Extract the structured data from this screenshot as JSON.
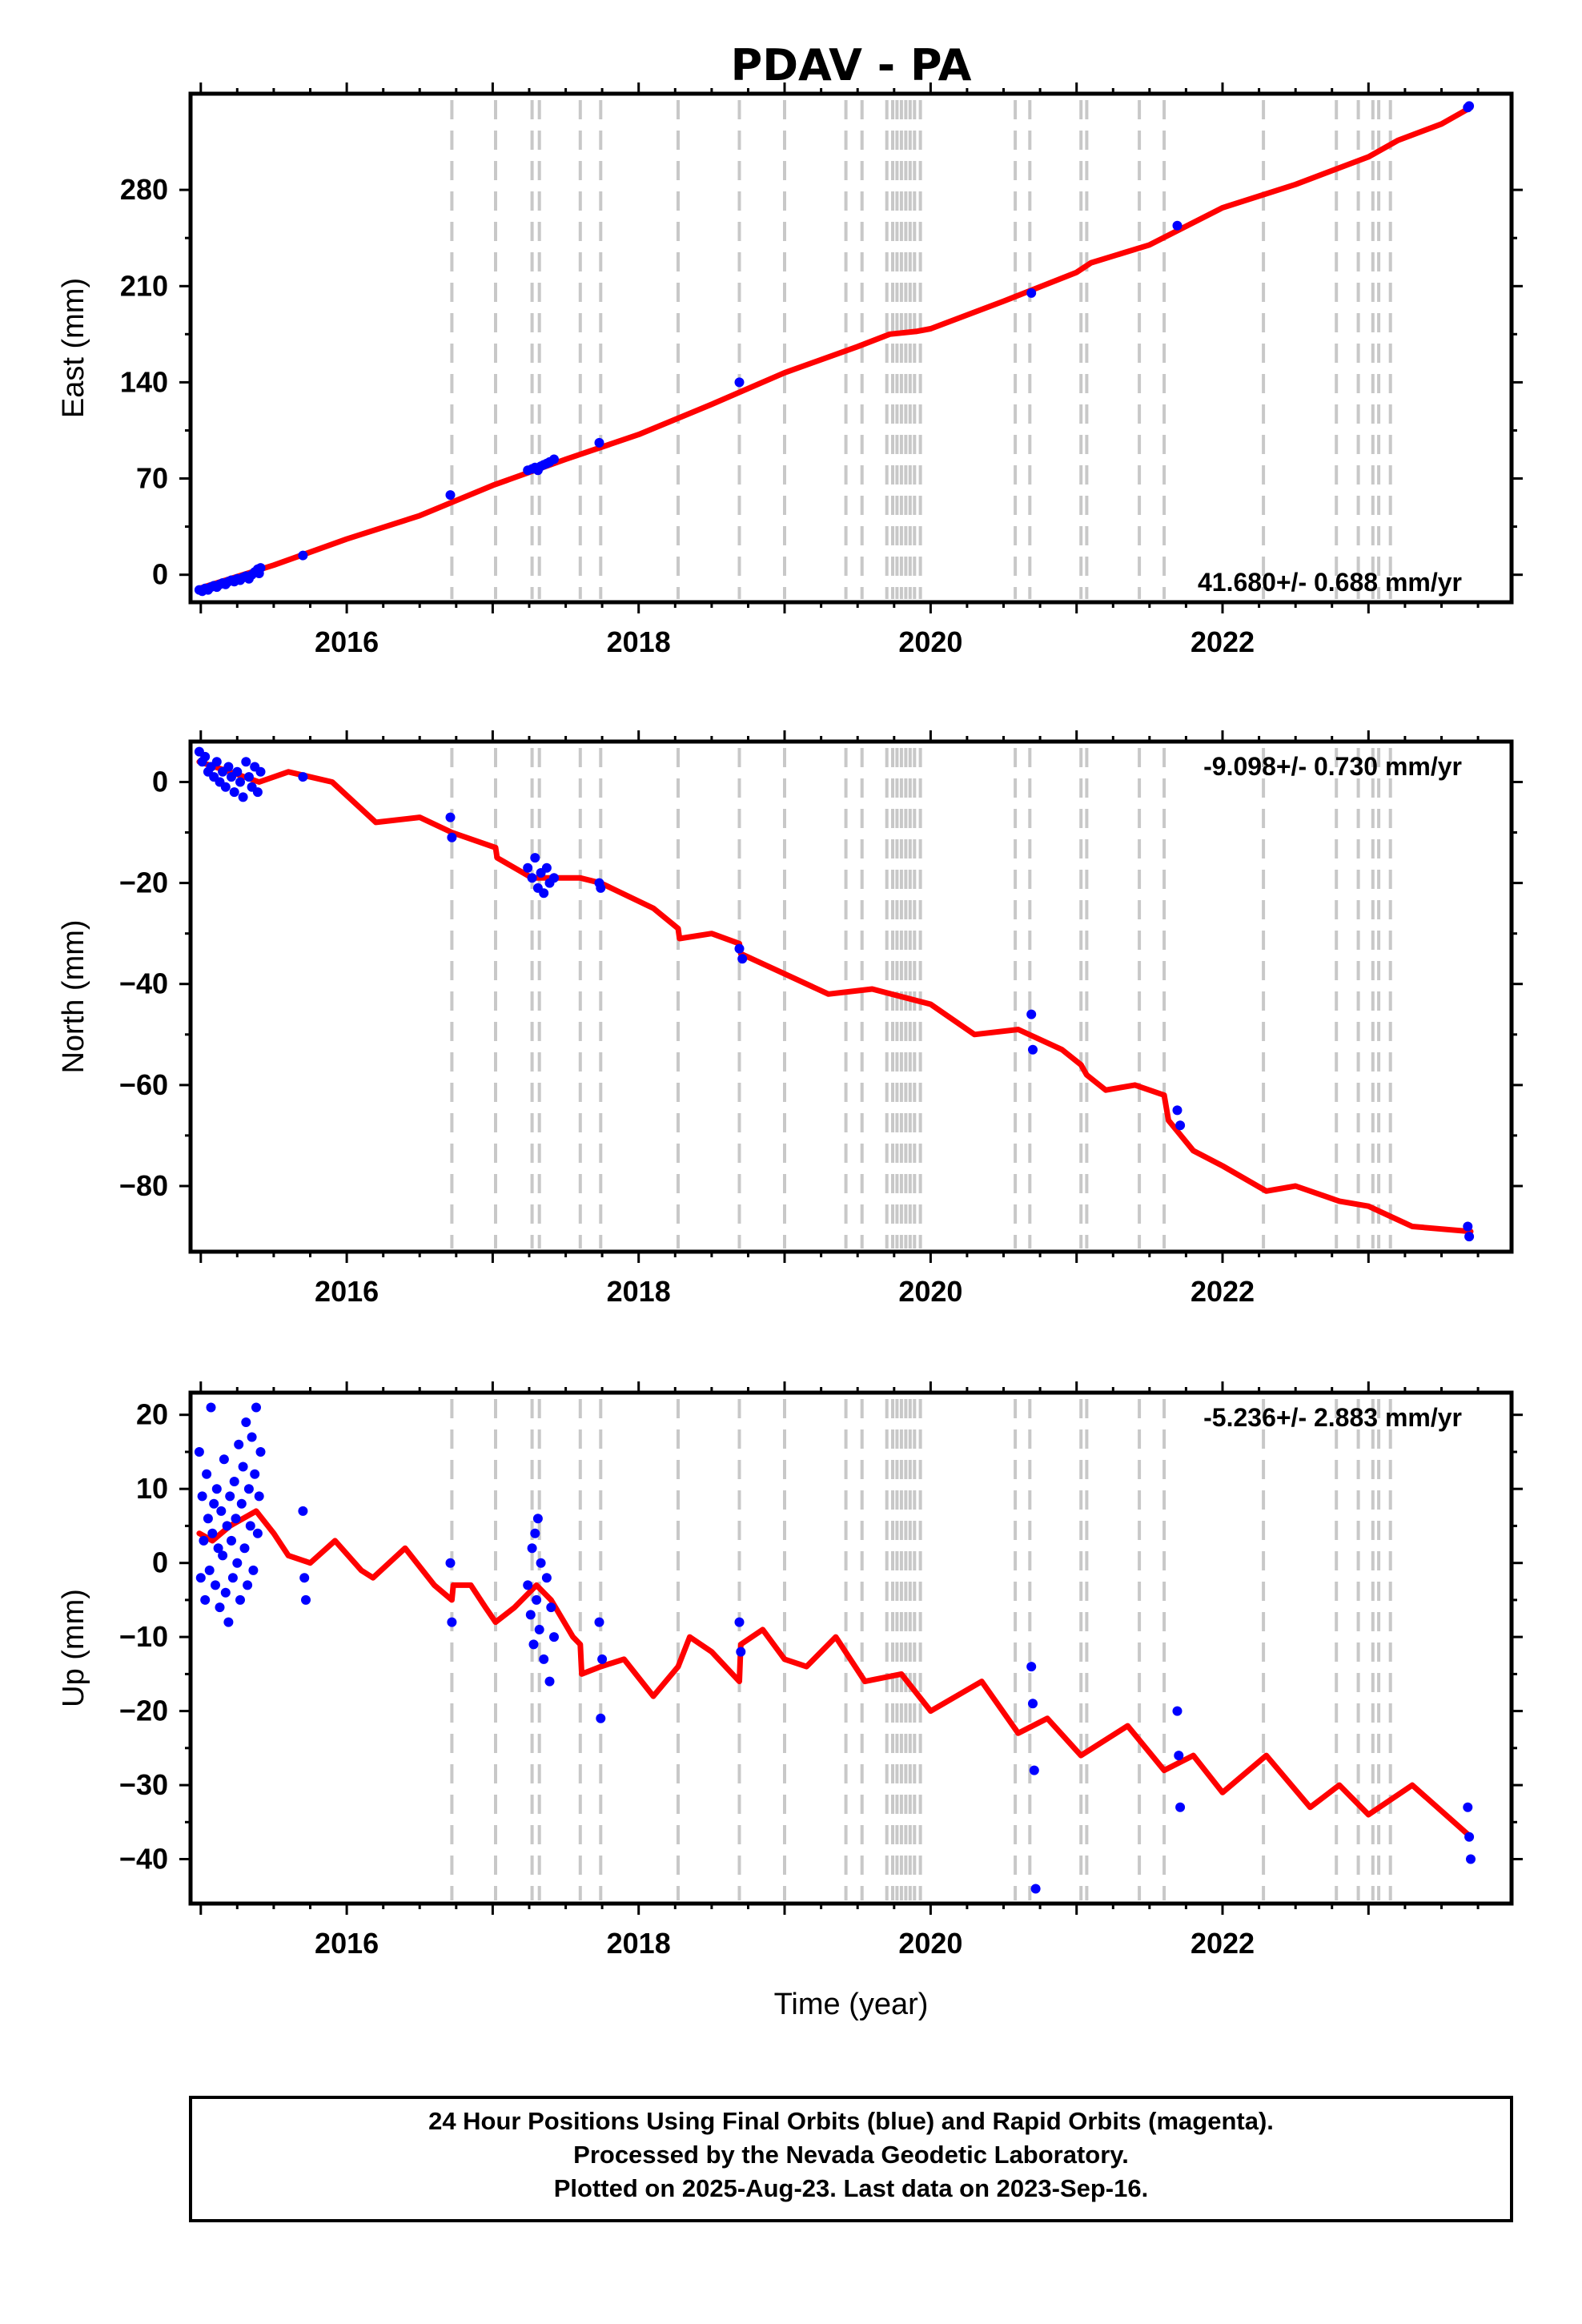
{
  "title": "PDAV - PA",
  "xlabel": "Time (year)",
  "footer": {
    "line1": "24 Hour Positions Using Final Orbits (blue) and Rapid Orbits (magenta).",
    "line2": "Processed by the Nevada Geodetic Laboratory.",
    "line3": "Plotted on 2025-Aug-23. Last data on 2023-Sep-16."
  },
  "colors": {
    "data": "#0000ff",
    "model": "#ff0000",
    "event": "#c8c8c8"
  },
  "chart_data": [
    {
      "type": "scatter",
      "ylabel": "East (mm)",
      "rate": "41.680+/- 0.688 mm/yr",
      "xlim": [
        2014.93,
        2023.98
      ],
      "ylim": [
        -20,
        350
      ],
      "yticks": [
        0,
        70,
        140,
        210,
        280
      ],
      "xticks": [
        2016,
        2018,
        2020,
        2022
      ],
      "event_lines": [
        2016.72,
        2017.02,
        2017.27,
        2017.32,
        2017.6,
        2017.74,
        2018.27,
        2018.69,
        2019.0,
        2019.42,
        2019.53,
        2019.7,
        2019.74,
        2019.77,
        2019.8,
        2019.83,
        2019.86,
        2019.89,
        2019.93,
        2020.58,
        2020.68,
        2021.03,
        2021.07,
        2021.43,
        2021.6,
        2022.28,
        2022.78,
        2022.93,
        2023.03,
        2023.07,
        2023.15
      ],
      "points": [
        [
          2014.99,
          -11
        ],
        [
          2015.01,
          -12
        ],
        [
          2015.03,
          -10
        ],
        [
          2015.05,
          -11
        ],
        [
          2015.07,
          -9
        ],
        [
          2015.09,
          -8
        ],
        [
          2015.11,
          -9
        ],
        [
          2015.13,
          -7
        ],
        [
          2015.15,
          -6
        ],
        [
          2015.17,
          -7
        ],
        [
          2015.19,
          -5
        ],
        [
          2015.21,
          -4
        ],
        [
          2015.23,
          -5
        ],
        [
          2015.25,
          -3
        ],
        [
          2015.27,
          -4
        ],
        [
          2015.29,
          -2
        ],
        [
          2015.31,
          -1
        ],
        [
          2015.33,
          -3
        ],
        [
          2015.35,
          0
        ],
        [
          2015.37,
          2
        ],
        [
          2015.39,
          4
        ],
        [
          2015.4,
          1
        ],
        [
          2015.41,
          5
        ],
        [
          2015.7,
          14
        ],
        [
          2016.71,
          58
        ],
        [
          2017.24,
          76
        ],
        [
          2017.27,
          77
        ],
        [
          2017.29,
          78
        ],
        [
          2017.31,
          76
        ],
        [
          2017.33,
          79
        ],
        [
          2017.35,
          80
        ],
        [
          2017.37,
          81
        ],
        [
          2017.39,
          82
        ],
        [
          2017.42,
          84
        ],
        [
          2017.73,
          96
        ],
        [
          2018.69,
          140
        ],
        [
          2020.69,
          205
        ],
        [
          2021.69,
          254
        ],
        [
          2023.68,
          340
        ],
        [
          2023.69,
          341
        ]
      ],
      "model": [
        [
          2014.99,
          -10
        ],
        [
          2015.5,
          7
        ],
        [
          2016.0,
          26
        ],
        [
          2016.5,
          43
        ],
        [
          2017.0,
          65
        ],
        [
          2017.5,
          84
        ],
        [
          2018.0,
          102
        ],
        [
          2018.5,
          124
        ],
        [
          2019.0,
          147
        ],
        [
          2019.5,
          166
        ],
        [
          2019.72,
          175
        ],
        [
          2019.9,
          177
        ],
        [
          2020.0,
          179
        ],
        [
          2020.5,
          199
        ],
        [
          2021.0,
          220
        ],
        [
          2021.1,
          227
        ],
        [
          2021.5,
          240
        ],
        [
          2022.0,
          267
        ],
        [
          2022.5,
          284
        ],
        [
          2023.0,
          304
        ],
        [
          2023.2,
          316
        ],
        [
          2023.5,
          328
        ],
        [
          2023.7,
          340
        ]
      ]
    },
    {
      "type": "scatter",
      "ylabel": "North (mm)",
      "rate": "-9.098+/- 0.730 mm/yr",
      "xlim": [
        2014.93,
        2023.98
      ],
      "ylim": [
        -93,
        8
      ],
      "yticks": [
        0,
        -20,
        -40,
        -60,
        -80
      ],
      "xticks": [
        2016,
        2018,
        2020,
        2022
      ],
      "event_lines": [
        2016.72,
        2017.02,
        2017.27,
        2017.32,
        2017.6,
        2017.74,
        2018.27,
        2018.69,
        2019.0,
        2019.42,
        2019.53,
        2019.7,
        2019.74,
        2019.77,
        2019.8,
        2019.83,
        2019.86,
        2019.89,
        2019.93,
        2020.58,
        2020.68,
        2021.03,
        2021.07,
        2021.43,
        2021.6,
        2022.28,
        2022.78,
        2022.93,
        2023.03,
        2023.07,
        2023.15
      ],
      "points": [
        [
          2014.99,
          6
        ],
        [
          2015.01,
          4
        ],
        [
          2015.03,
          5
        ],
        [
          2015.05,
          2
        ],
        [
          2015.07,
          3
        ],
        [
          2015.09,
          1
        ],
        [
          2015.11,
          4
        ],
        [
          2015.13,
          0
        ],
        [
          2015.15,
          2
        ],
        [
          2015.17,
          -1
        ],
        [
          2015.19,
          3
        ],
        [
          2015.21,
          1
        ],
        [
          2015.23,
          -2
        ],
        [
          2015.25,
          2
        ],
        [
          2015.27,
          0
        ],
        [
          2015.29,
          -3
        ],
        [
          2015.31,
          4
        ],
        [
          2015.33,
          1
        ],
        [
          2015.35,
          -1
        ],
        [
          2015.37,
          3
        ],
        [
          2015.39,
          -2
        ],
        [
          2015.41,
          2
        ],
        [
          2015.7,
          1
        ],
        [
          2016.71,
          -7
        ],
        [
          2016.72,
          -11
        ],
        [
          2017.24,
          -17
        ],
        [
          2017.27,
          -19
        ],
        [
          2017.29,
          -15
        ],
        [
          2017.31,
          -21
        ],
        [
          2017.33,
          -18
        ],
        [
          2017.35,
          -22
        ],
        [
          2017.37,
          -17
        ],
        [
          2017.39,
          -20
        ],
        [
          2017.42,
          -19
        ],
        [
          2017.73,
          -20
        ],
        [
          2017.74,
          -21
        ],
        [
          2018.69,
          -33
        ],
        [
          2018.71,
          -35
        ],
        [
          2020.69,
          -46
        ],
        [
          2020.7,
          -53
        ],
        [
          2021.69,
          -65
        ],
        [
          2021.71,
          -68
        ],
        [
          2023.68,
          -88
        ],
        [
          2023.69,
          -90
        ]
      ],
      "model": [
        [
          2014.99,
          4
        ],
        [
          2015.2,
          2
        ],
        [
          2015.4,
          0
        ],
        [
          2015.6,
          2
        ],
        [
          2015.9,
          0
        ],
        [
          2016.2,
          -8
        ],
        [
          2016.5,
          -7
        ],
        [
          2016.72,
          -10
        ],
        [
          2017.02,
          -13
        ],
        [
          2017.03,
          -15
        ],
        [
          2017.27,
          -19
        ],
        [
          2017.6,
          -19
        ],
        [
          2017.74,
          -20
        ],
        [
          2018.1,
          -25
        ],
        [
          2018.27,
          -29
        ],
        [
          2018.28,
          -31
        ],
        [
          2018.5,
          -30
        ],
        [
          2018.69,
          -32
        ],
        [
          2018.7,
          -34
        ],
        [
          2019.0,
          -38
        ],
        [
          2019.3,
          -42
        ],
        [
          2019.6,
          -41
        ],
        [
          2020.0,
          -44
        ],
        [
          2020.3,
          -50
        ],
        [
          2020.6,
          -49
        ],
        [
          2020.9,
          -53
        ],
        [
          2021.03,
          -56
        ],
        [
          2021.07,
          -58
        ],
        [
          2021.2,
          -61
        ],
        [
          2021.4,
          -60
        ],
        [
          2021.6,
          -62
        ],
        [
          2021.63,
          -67
        ],
        [
          2021.8,
          -73
        ],
        [
          2022.0,
          -76
        ],
        [
          2022.3,
          -81
        ],
        [
          2022.5,
          -80
        ],
        [
          2022.8,
          -83
        ],
        [
          2023.0,
          -84
        ],
        [
          2023.3,
          -88
        ],
        [
          2023.7,
          -89
        ]
      ]
    },
    {
      "type": "scatter",
      "ylabel": "Up (mm)",
      "rate": "-5.236+/- 2.883 mm/yr",
      "xlim": [
        2014.93,
        2023.98
      ],
      "ylim": [
        -46,
        23
      ],
      "yticks": [
        20,
        10,
        0,
        -10,
        -20,
        -30,
        -40
      ],
      "xticks": [
        2016,
        2018,
        2020,
        2022
      ],
      "event_lines": [
        2016.72,
        2017.02,
        2017.27,
        2017.32,
        2017.6,
        2017.74,
        2018.27,
        2018.69,
        2019.0,
        2019.42,
        2019.53,
        2019.7,
        2019.74,
        2019.77,
        2019.8,
        2019.83,
        2019.86,
        2019.89,
        2019.93,
        2020.58,
        2020.68,
        2021.03,
        2021.07,
        2021.43,
        2021.6,
        2022.28,
        2022.78,
        2022.93,
        2023.03,
        2023.07,
        2023.15
      ],
      "points": [
        [
          2014.99,
          15
        ],
        [
          2015.0,
          -2
        ],
        [
          2015.01,
          9
        ],
        [
          2015.02,
          3
        ],
        [
          2015.03,
          -5
        ],
        [
          2015.04,
          12
        ],
        [
          2015.05,
          6
        ],
        [
          2015.06,
          -1
        ],
        [
          2015.07,
          21
        ],
        [
          2015.08,
          4
        ],
        [
          2015.09,
          8
        ],
        [
          2015.1,
          -3
        ],
        [
          2015.11,
          10
        ],
        [
          2015.12,
          2
        ],
        [
          2015.13,
          -6
        ],
        [
          2015.14,
          7
        ],
        [
          2015.15,
          1
        ],
        [
          2015.16,
          14
        ],
        [
          2015.17,
          -4
        ],
        [
          2015.18,
          5
        ],
        [
          2015.19,
          -8
        ],
        [
          2015.2,
          9
        ],
        [
          2015.21,
          3
        ],
        [
          2015.22,
          -2
        ],
        [
          2015.23,
          11
        ],
        [
          2015.24,
          6
        ],
        [
          2015.25,
          0
        ],
        [
          2015.26,
          16
        ],
        [
          2015.27,
          -5
        ],
        [
          2015.28,
          8
        ],
        [
          2015.29,
          13
        ],
        [
          2015.3,
          2
        ],
        [
          2015.31,
          19
        ],
        [
          2015.32,
          -3
        ],
        [
          2015.33,
          10
        ],
        [
          2015.34,
          5
        ],
        [
          2015.35,
          17
        ],
        [
          2015.36,
          -1
        ],
        [
          2015.37,
          12
        ],
        [
          2015.38,
          21
        ],
        [
          2015.39,
          4
        ],
        [
          2015.4,
          9
        ],
        [
          2015.41,
          15
        ],
        [
          2015.7,
          7
        ],
        [
          2015.71,
          -2
        ],
        [
          2015.72,
          -5
        ],
        [
          2016.71,
          0
        ],
        [
          2016.72,
          -8
        ],
        [
          2017.24,
          -3
        ],
        [
          2017.26,
          -7
        ],
        [
          2017.27,
          2
        ],
        [
          2017.28,
          -11
        ],
        [
          2017.29,
          4
        ],
        [
          2017.3,
          -5
        ],
        [
          2017.31,
          6
        ],
        [
          2017.32,
          -9
        ],
        [
          2017.33,
          0
        ],
        [
          2017.35,
          -13
        ],
        [
          2017.37,
          -2
        ],
        [
          2017.39,
          -16
        ],
        [
          2017.4,
          -6
        ],
        [
          2017.42,
          -10
        ],
        [
          2017.73,
          -8
        ],
        [
          2017.74,
          -21
        ],
        [
          2017.75,
          -13
        ],
        [
          2018.69,
          -8
        ],
        [
          2018.7,
          -12
        ],
        [
          2020.69,
          -14
        ],
        [
          2020.7,
          -19
        ],
        [
          2020.71,
          -28
        ],
        [
          2020.72,
          -44
        ],
        [
          2021.69,
          -20
        ],
        [
          2021.7,
          -26
        ],
        [
          2021.71,
          -33
        ],
        [
          2023.68,
          -33
        ],
        [
          2023.69,
          -37
        ],
        [
          2023.7,
          -40
        ]
      ],
      "model": [
        [
          2014.99,
          4
        ],
        [
          2015.08,
          3
        ],
        [
          2015.2,
          5
        ],
        [
          2015.38,
          7
        ],
        [
          2015.5,
          4
        ],
        [
          2015.6,
          1
        ],
        [
          2015.75,
          0
        ],
        [
          2015.92,
          3
        ],
        [
          2016.1,
          -1
        ],
        [
          2016.18,
          -2
        ],
        [
          2016.4,
          2
        ],
        [
          2016.6,
          -3
        ],
        [
          2016.72,
          -5
        ],
        [
          2016.73,
          -3
        ],
        [
          2016.85,
          -3
        ],
        [
          2016.95,
          -6
        ],
        [
          2017.02,
          -8
        ],
        [
          2017.15,
          -6
        ],
        [
          2017.3,
          -3
        ],
        [
          2017.4,
          -5
        ],
        [
          2017.55,
          -10
        ],
        [
          2017.6,
          -11
        ],
        [
          2017.61,
          -15
        ],
        [
          2017.74,
          -14
        ],
        [
          2017.9,
          -13
        ],
        [
          2018.1,
          -18
        ],
        [
          2018.27,
          -14
        ],
        [
          2018.35,
          -10
        ],
        [
          2018.5,
          -12
        ],
        [
          2018.69,
          -16
        ],
        [
          2018.7,
          -11
        ],
        [
          2018.85,
          -9
        ],
        [
          2019.0,
          -13
        ],
        [
          2019.15,
          -14
        ],
        [
          2019.35,
          -10
        ],
        [
          2019.55,
          -16
        ],
        [
          2019.8,
          -15
        ],
        [
          2020.0,
          -20
        ],
        [
          2020.35,
          -16
        ],
        [
          2020.6,
          -23
        ],
        [
          2020.8,
          -21
        ],
        [
          2021.03,
          -26
        ],
        [
          2021.35,
          -22
        ],
        [
          2021.6,
          -28
        ],
        [
          2021.8,
          -26
        ],
        [
          2022.0,
          -31
        ],
        [
          2022.3,
          -26
        ],
        [
          2022.6,
          -33
        ],
        [
          2022.8,
          -30
        ],
        [
          2023.0,
          -34
        ],
        [
          2023.3,
          -30
        ],
        [
          2023.7,
          -37
        ]
      ]
    }
  ]
}
